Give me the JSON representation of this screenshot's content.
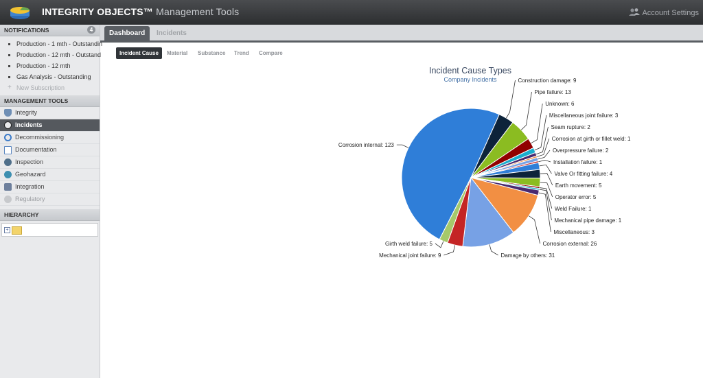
{
  "header": {
    "brand": "INTEGRITY OBJECTS™",
    "subtitle": "Management Tools",
    "account_label": "Account Settings"
  },
  "sidebar": {
    "notifications_title": "NOTIFICATIONS",
    "notifications_count": "4",
    "notifications": [
      "Production - 1 mth - Outstandin",
      "Production - 12 mth - Outstand",
      "Production - 12 mth",
      "Gas Analysis - Outstanding"
    ],
    "new_subscription": "New Subscription",
    "tools_title": "MANAGEMENT TOOLS",
    "tools": [
      {
        "label": "Integrity",
        "icon": "shield-icon",
        "color": "#6f8fb5"
      },
      {
        "label": "Incidents",
        "icon": "hazard-icon",
        "color": "#333333",
        "active": true
      },
      {
        "label": "Decommissioning",
        "icon": "cycle-icon",
        "color": "#3d7cc9"
      },
      {
        "label": "Documentation",
        "icon": "document-icon",
        "color": "#5a86c0"
      },
      {
        "label": "Inspection",
        "icon": "inspection-icon",
        "color": "#4f6f8a"
      },
      {
        "label": "Geohazard",
        "icon": "globe-icon",
        "color": "#3d8fb0"
      },
      {
        "label": "Integration",
        "icon": "integration-icon",
        "color": "#6d7f9c"
      },
      {
        "label": "Regulatory",
        "icon": "regulatory-icon",
        "color": "#b7b9bc"
      }
    ],
    "hierarchy_title": "HIERARCHY"
  },
  "tabs": [
    {
      "label": "Dashboard",
      "active": true
    },
    {
      "label": "Incidents",
      "active": false
    }
  ],
  "subtabs": [
    {
      "label": "Incident Cause",
      "active": true
    },
    {
      "label": "Material",
      "active": false
    },
    {
      "label": "Substance",
      "active": false
    },
    {
      "label": "Trend",
      "active": false
    },
    {
      "label": "Compare",
      "active": false
    }
  ],
  "chart_data": {
    "type": "pie",
    "title": "Incident Cause Types",
    "subtitle": "Company Incidents",
    "slices": [
      {
        "label": "Corrosion internal",
        "value": 123,
        "color": "#2f7ed8"
      },
      {
        "label": "Construction damage",
        "value": 9,
        "color": "#0d233a"
      },
      {
        "label": "Pipe failure",
        "value": 13,
        "color": "#8bbc21"
      },
      {
        "label": "Unknown",
        "value": 6,
        "color": "#910000"
      },
      {
        "label": "Miscellaneous joint failure",
        "value": 3,
        "color": "#1aadce"
      },
      {
        "label": "Seam rupture",
        "value": 2,
        "color": "#492970"
      },
      {
        "label": "Corrosion at girth or fillet weld",
        "value": 1,
        "color": "#f28f43"
      },
      {
        "label": "Overpressure failure",
        "value": 2,
        "color": "#77a1e5"
      },
      {
        "label": "Installation failure",
        "value": 1,
        "color": "#c42525"
      },
      {
        "label": "Valve Or fitting failure",
        "value": 4,
        "color": "#2f7ed8"
      },
      {
        "label": "Earth movement",
        "value": 5,
        "color": "#0d233a"
      },
      {
        "label": "Operator error",
        "value": 5,
        "color": "#8bbc21"
      },
      {
        "label": "Weld Failure",
        "value": 1,
        "color": "#910000"
      },
      {
        "label": "Mechanical pipe damage",
        "value": 1,
        "color": "#1aadce"
      },
      {
        "label": "Miscellaneous",
        "value": 3,
        "color": "#492970"
      },
      {
        "label": "Corrosion external",
        "value": 26,
        "color": "#f28f43"
      },
      {
        "label": "Damage by others",
        "value": 31,
        "color": "#77a1e5"
      },
      {
        "label": "Mechanical joint failure",
        "value": 9,
        "color": "#c42525"
      },
      {
        "label": "Girth weld failure",
        "value": 5,
        "color": "#a6c96a"
      }
    ]
  }
}
